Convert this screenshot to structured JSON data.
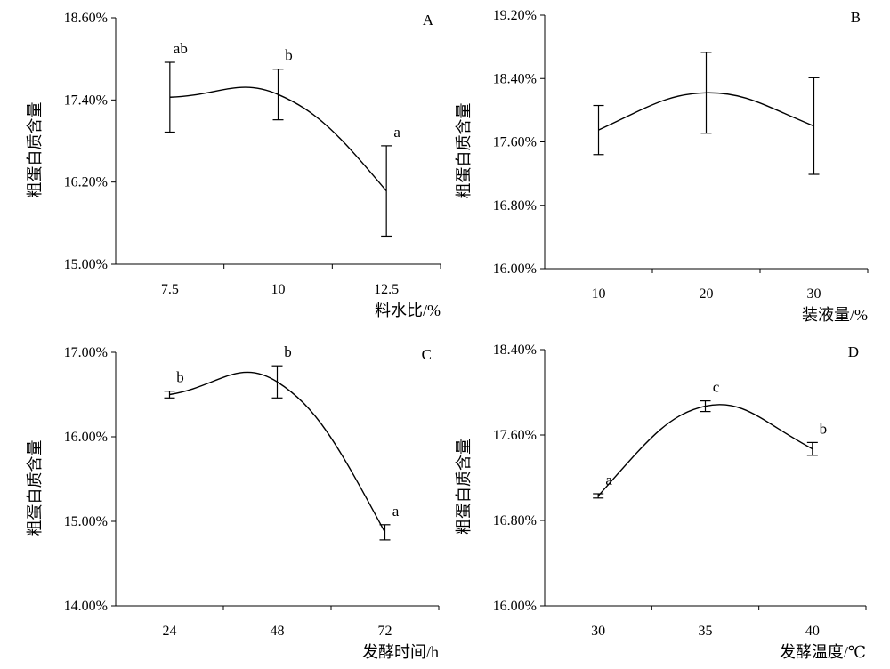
{
  "chart_data": [
    {
      "type": "line",
      "panel": "A",
      "xlabel": "料水比/%",
      "ylabel": "粗蛋白质含量",
      "ylim": [
        15.0,
        18.6
      ],
      "yticks": [
        "15.00%",
        "16.20%",
        "17.40%",
        "18.60%"
      ],
      "ytick_values": [
        15.0,
        16.2,
        17.4,
        18.6
      ],
      "categories": [
        "7.5",
        "10",
        "12.5"
      ],
      "values": [
        17.44,
        17.48,
        16.07
      ],
      "errors": [
        0.51,
        0.37,
        0.66
      ],
      "sig_letters": [
        "ab",
        "b",
        "a"
      ]
    },
    {
      "type": "line",
      "panel": "B",
      "xlabel": "装液量/%",
      "ylabel": "粗蛋白质含量",
      "ylim": [
        16.0,
        19.2
      ],
      "yticks": [
        "16.00%",
        "16.80%",
        "17.60%",
        "18.40%",
        "19.20%"
      ],
      "ytick_values": [
        16.0,
        16.8,
        17.6,
        18.4,
        19.2
      ],
      "categories": [
        "10",
        "20",
        "30"
      ],
      "values": [
        17.75,
        18.22,
        17.8
      ],
      "errors": [
        0.31,
        0.51,
        0.61
      ],
      "sig_letters": [
        "",
        "",
        ""
      ]
    },
    {
      "type": "line",
      "panel": "C",
      "xlabel": "发酵时间/h",
      "ylabel": "粗蛋白质含量",
      "ylim": [
        14.0,
        17.0
      ],
      "yticks": [
        "14.00%",
        "15.00%",
        "16.00%",
        "17.00%"
      ],
      "ytick_values": [
        14.0,
        15.0,
        16.0,
        17.0
      ],
      "categories": [
        "24",
        "48",
        "72"
      ],
      "values": [
        16.5,
        16.65,
        14.87
      ],
      "errors": [
        0.04,
        0.19,
        0.09
      ],
      "sig_letters": [
        "b",
        "b",
        "a"
      ]
    },
    {
      "type": "line",
      "panel": "D",
      "xlabel": "发酵温度/℃",
      "ylabel": "粗蛋白质含量",
      "ylim": [
        16.0,
        18.4
      ],
      "yticks": [
        "16.00%",
        "16.80%",
        "17.60%",
        "18.40%"
      ],
      "ytick_values": [
        16.0,
        16.8,
        17.6,
        18.4
      ],
      "categories": [
        "30",
        "35",
        "40"
      ],
      "values": [
        17.03,
        17.87,
        17.47
      ],
      "errors": [
        0.02,
        0.05,
        0.06
      ],
      "sig_letters": [
        "a",
        "c",
        "b"
      ]
    }
  ]
}
